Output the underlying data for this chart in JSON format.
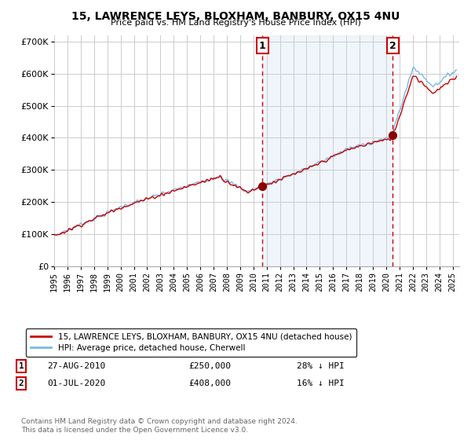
{
  "title": "15, LAWRENCE LEYS, BLOXHAM, BANBURY, OX15 4NU",
  "subtitle": "Price paid vs. HM Land Registry's House Price Index (HPI)",
  "legend_label_red": "15, LAWRENCE LEYS, BLOXHAM, BANBURY, OX15 4NU (detached house)",
  "legend_label_blue": "HPI: Average price, detached house, Cherwell",
  "annotation1_date": "27-AUG-2010",
  "annotation1_price": "£250,000",
  "annotation1_pct": "28% ↓ HPI",
  "annotation2_date": "01-JUL-2020",
  "annotation2_price": "£408,000",
  "annotation2_pct": "16% ↓ HPI",
  "footer": "Contains HM Land Registry data © Crown copyright and database right 2024.\nThis data is licensed under the Open Government Licence v3.0.",
  "purchase1_year": 2010.67,
  "purchase1_value": 250000,
  "purchase2_year": 2020.5,
  "purchase2_value": 408000,
  "hpi_color": "#7ab8e8",
  "price_color": "#cc0000",
  "vline_color": "#cc0000",
  "dot_color": "#8b0000",
  "shade_color": "#ddeeff",
  "background_color": "#ffffff",
  "grid_color": "#cccccc",
  "ylim_min": 0,
  "ylim_max": 720000,
  "xlim_min": 1995.0,
  "xlim_max": 2025.5
}
